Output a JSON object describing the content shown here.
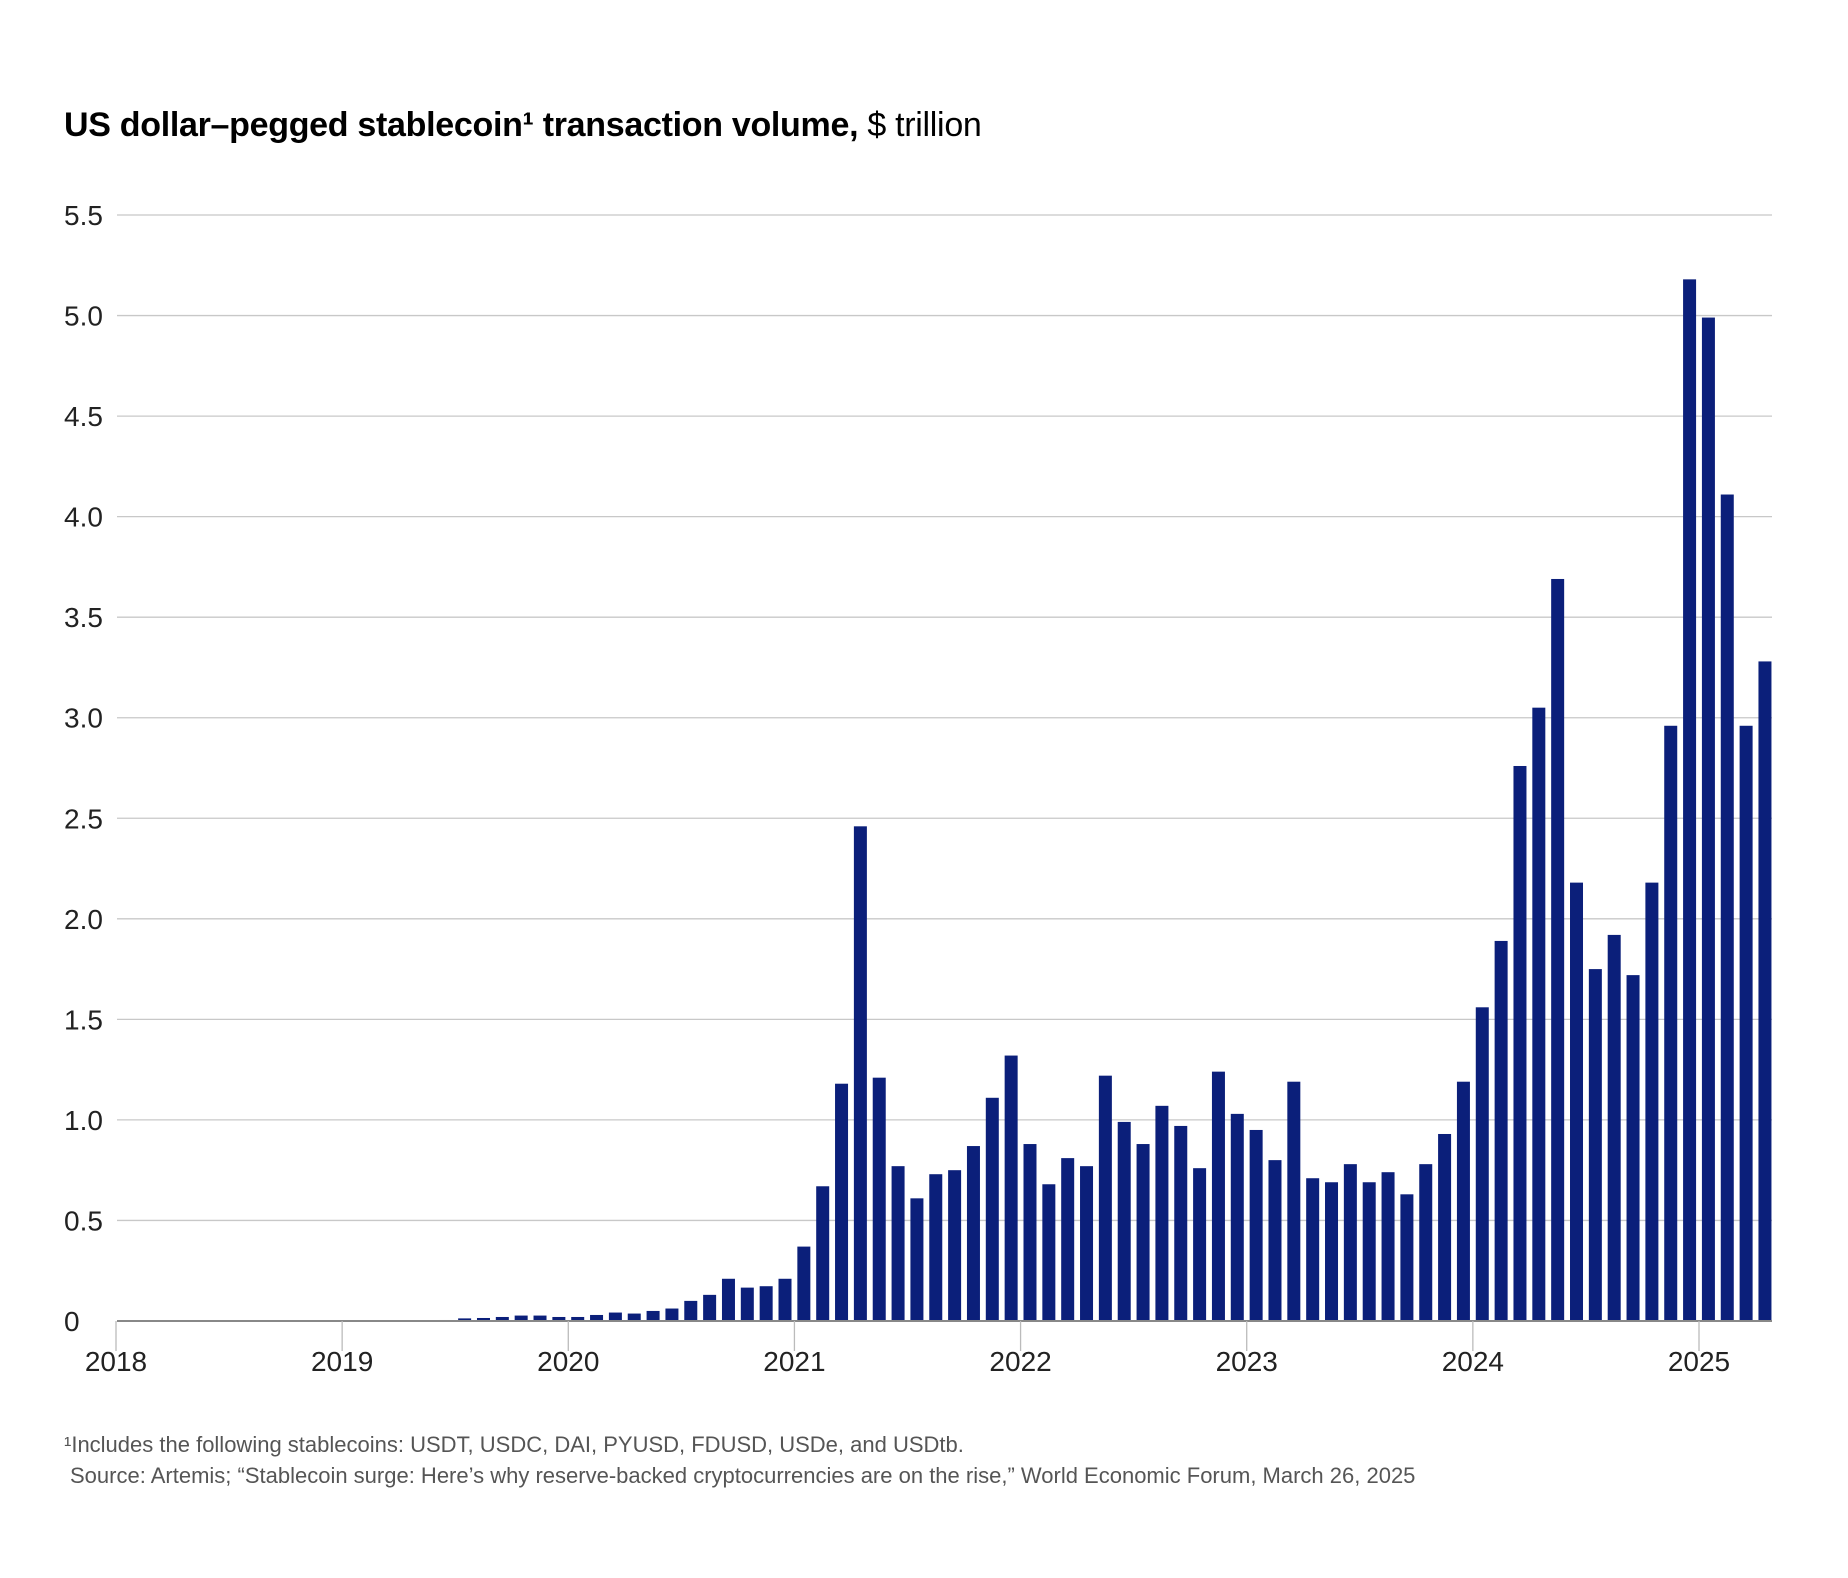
{
  "chart_data": {
    "type": "bar",
    "title": "US dollar–pegged stablecoin¹ transaction volume,",
    "title_unit": "$ trillion",
    "xlabel": "",
    "ylabel": "",
    "ylim": [
      0,
      5.5
    ],
    "yticks": [
      "0",
      "0.5",
      "1.0",
      "1.5",
      "2.0",
      "2.5",
      "3.0",
      "3.5",
      "4.0",
      "4.5",
      "5.0",
      "5.5"
    ],
    "xticks": [
      "2018",
      "2019",
      "2020",
      "2021",
      "2022",
      "2023",
      "2024",
      "2025"
    ],
    "grid": true,
    "bar_color": "#0b1f7a",
    "categories": [
      "2018-01",
      "2018-02",
      "2018-03",
      "2018-04",
      "2018-05",
      "2018-06",
      "2018-07",
      "2018-08",
      "2018-09",
      "2018-10",
      "2018-11",
      "2018-12",
      "2019-01",
      "2019-02",
      "2019-03",
      "2019-04",
      "2019-05",
      "2019-06",
      "2019-07",
      "2019-08",
      "2019-09",
      "2019-10",
      "2019-11",
      "2019-12",
      "2020-01",
      "2020-02",
      "2020-03",
      "2020-04",
      "2020-05",
      "2020-06",
      "2020-07",
      "2020-08",
      "2020-09",
      "2020-10",
      "2020-11",
      "2020-12",
      "2021-01",
      "2021-02",
      "2021-03",
      "2021-04",
      "2021-05",
      "2021-06",
      "2021-07",
      "2021-08",
      "2021-09",
      "2021-10",
      "2021-11",
      "2021-12",
      "2022-01",
      "2022-02",
      "2022-03",
      "2022-04",
      "2022-05",
      "2022-06",
      "2022-07",
      "2022-08",
      "2022-09",
      "2022-10",
      "2022-11",
      "2022-12",
      "2023-01",
      "2023-02",
      "2023-03",
      "2023-04",
      "2023-05",
      "2023-06",
      "2023-07",
      "2023-08",
      "2023-09",
      "2023-10",
      "2023-11",
      "2023-12",
      "2024-01",
      "2024-02",
      "2024-03",
      "2024-04",
      "2024-05",
      "2024-06",
      "2024-07",
      "2024-08",
      "2024-09",
      "2024-10",
      "2024-11",
      "2024-12",
      "2025-01",
      "2025-02",
      "2025-03",
      "2025-04"
    ],
    "values": [
      0,
      0,
      0,
      0,
      0,
      0,
      0,
      0,
      0,
      0,
      0,
      0,
      0.001,
      0,
      0.001,
      0.002,
      0.003,
      0.005,
      0.013,
      0.015,
      0.02,
      0.027,
      0.027,
      0.02,
      0.02,
      0.03,
      0.042,
      0.037,
      0.05,
      0.062,
      0.1,
      0.13,
      0.21,
      0.166,
      0.173,
      0.21,
      0.37,
      0.67,
      1.18,
      2.46,
      1.21,
      0.77,
      0.61,
      0.73,
      0.75,
      0.87,
      1.11,
      1.32,
      0.88,
      0.68,
      0.81,
      0.77,
      1.22,
      0.99,
      0.88,
      1.07,
      0.97,
      0.76,
      1.24,
      1.03,
      0.95,
      0.8,
      1.19,
      0.71,
      0.69,
      0.78,
      0.69,
      0.74,
      0.63,
      0.78,
      0.93,
      1.19,
      1.56,
      1.89,
      2.76,
      3.05,
      3.69,
      2.18,
      1.75,
      1.92,
      1.72,
      2.18,
      2.96,
      5.18,
      4.99,
      4.11,
      2.96,
      3.28
    ]
  },
  "footnotes": {
    "note": "¹Includes the following stablecoins: USDT, USDC, DAI, PYUSD, FDUSD, USDe, and USDtb.",
    "source": "Source: Artemis; “Stablecoin surge: Here’s why reserve-backed cryptocurrencies are on the rise,” World Economic Forum, March 26, 2025"
  }
}
